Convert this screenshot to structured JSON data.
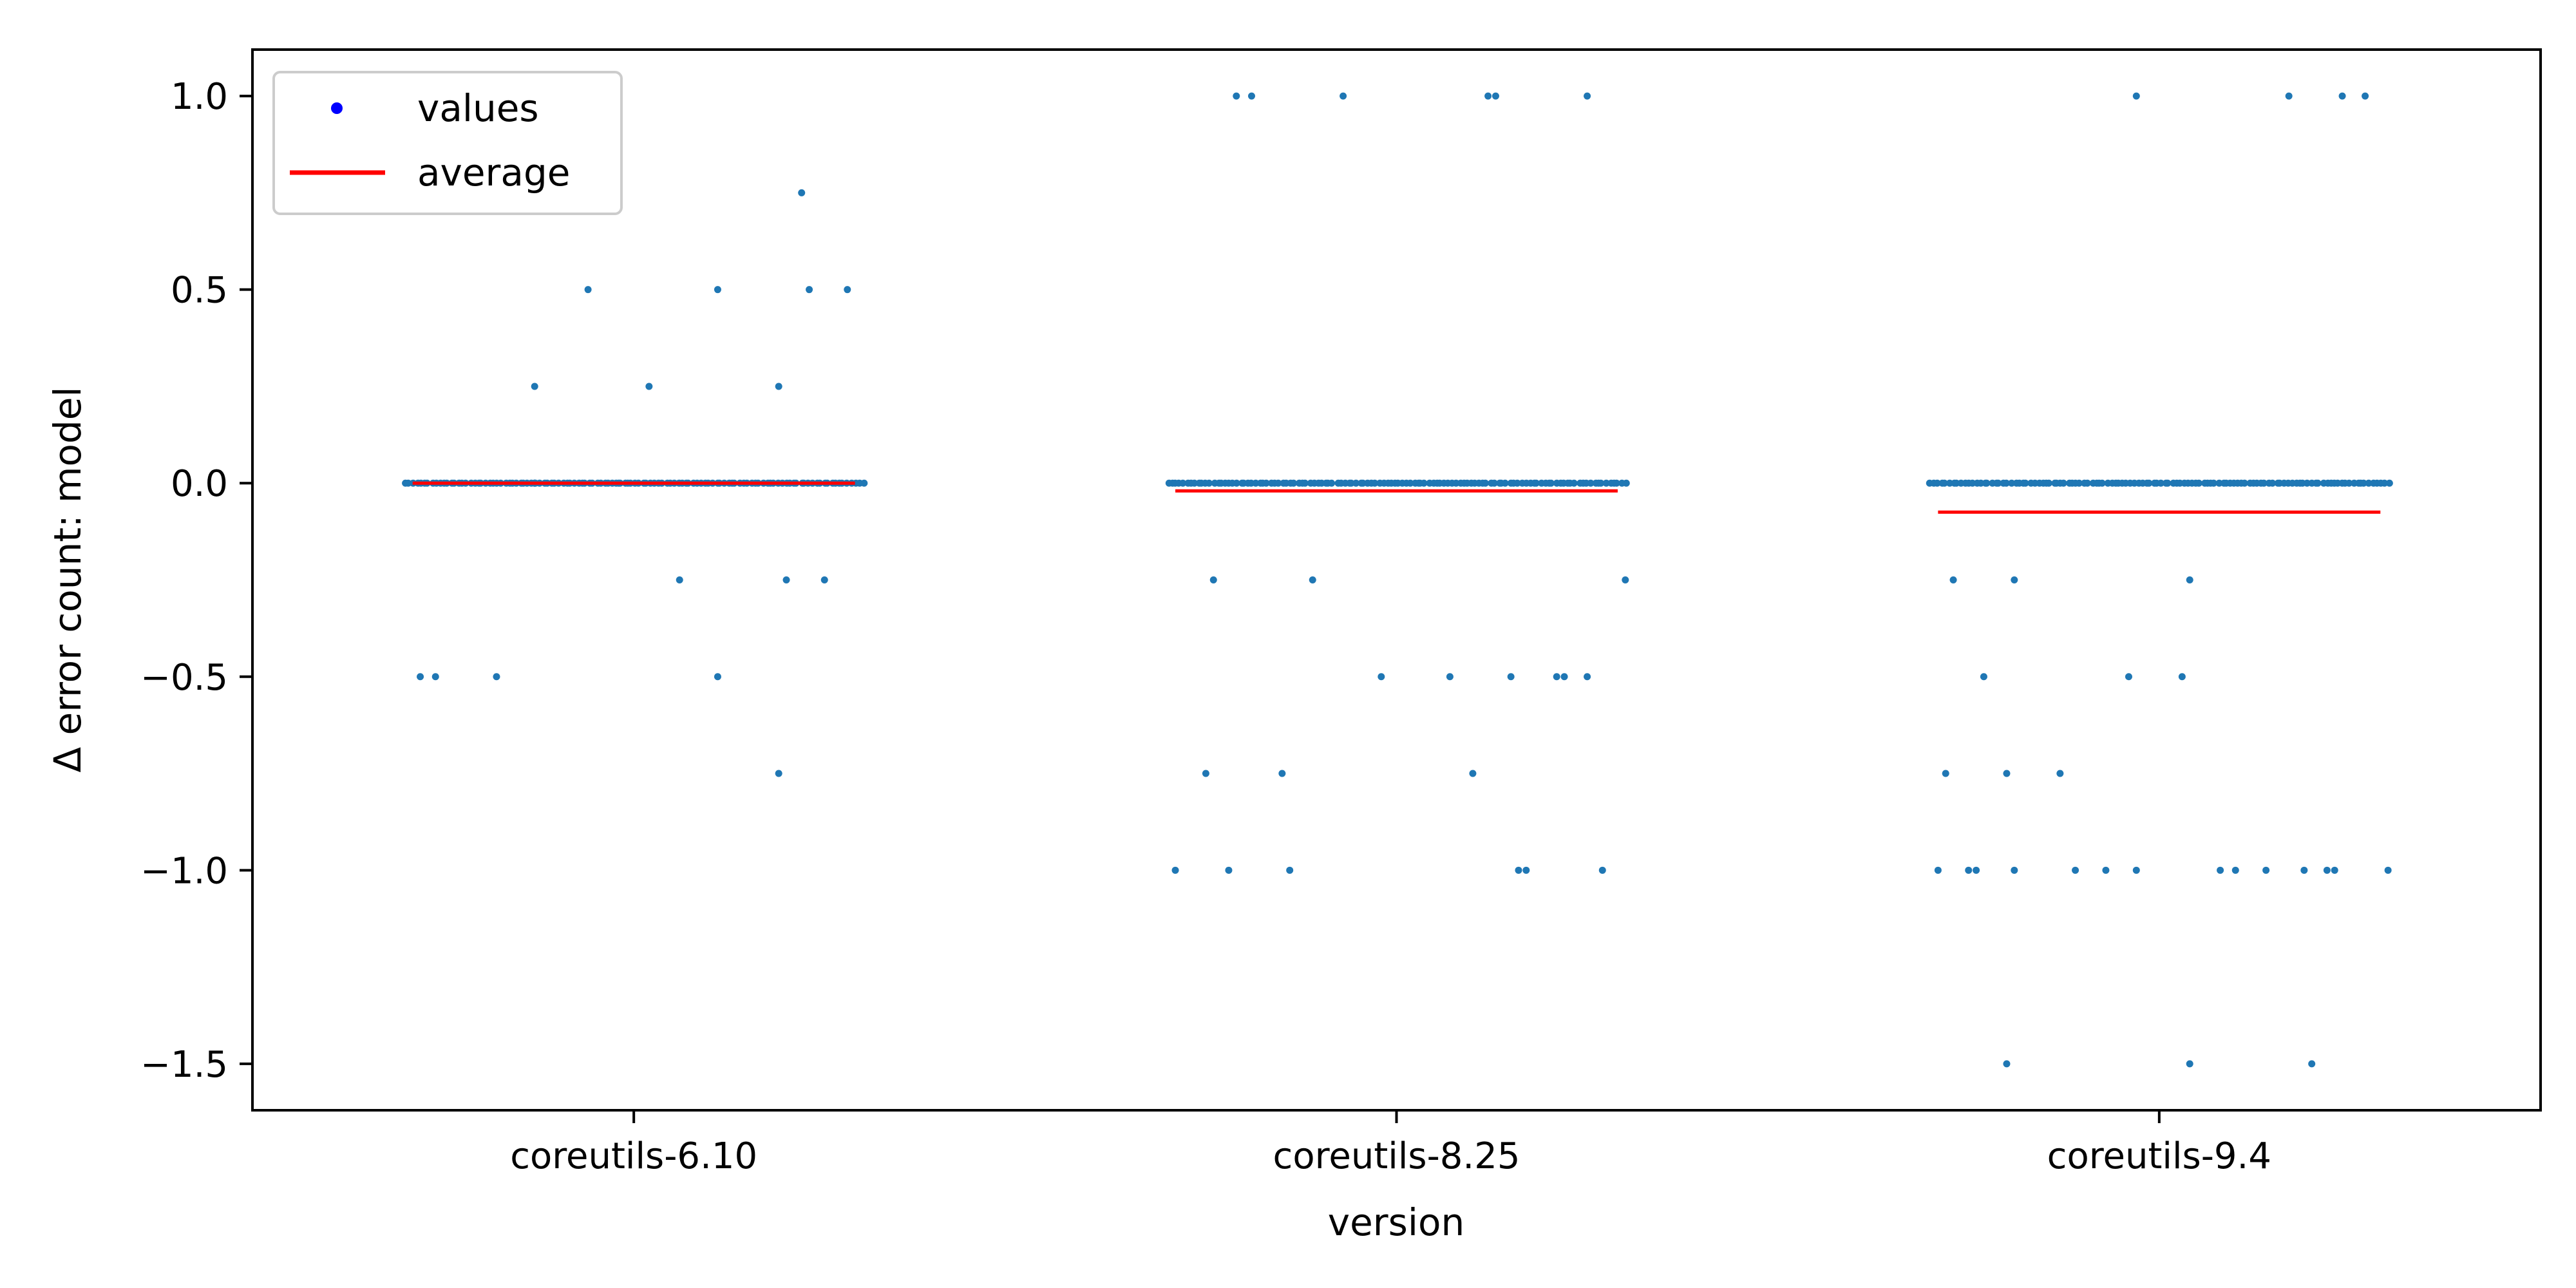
{
  "chart_data": {
    "type": "scatter",
    "xlabel": "version",
    "ylabel": "Δ error count: model",
    "ylim": [
      -1.62,
      1.12
    ],
    "categories": [
      "coreutils-6.10",
      "coreutils-8.25",
      "coreutils-9.4"
    ],
    "y_ticks": [
      1.0,
      0.5,
      0.0,
      -0.5,
      -1.0,
      -1.5
    ],
    "y_tick_labels": [
      "1.0",
      "0.5",
      "0.0",
      "−0.5",
      "−1.0",
      "−1.5"
    ],
    "legend": {
      "placement": "top-left",
      "entries": [
        {
          "label": "values",
          "color": "#0000ff",
          "marker": "dot"
        },
        {
          "label": "average",
          "color": "#ff0000",
          "marker": "line"
        }
      ]
    },
    "point_color": "#1f77b4",
    "average_color": "#ff0000",
    "jitter_range": [
      -0.3,
      0.3
    ],
    "groups": [
      {
        "category": "coreutils-6.10",
        "average": 0.0,
        "zero_count": 120,
        "outliers": [
          {
            "x": -0.13,
            "y": 0.25
          },
          {
            "x": -0.13,
            "y": 0.0
          },
          {
            "x": -0.13,
            "y": 0.0
          },
          {
            "x": -0.06,
            "y": 0.5
          },
          {
            "x": -0.02,
            "y": 0.0
          },
          {
            "x": 0.02,
            "y": 0.25
          },
          {
            "x": 0.11,
            "y": 0.5
          },
          {
            "x": 0.19,
            "y": 0.25
          },
          {
            "x": 0.22,
            "y": 0.75
          },
          {
            "x": 0.23,
            "y": 0.5
          },
          {
            "x": 0.28,
            "y": 0.5
          },
          {
            "x": 0.06,
            "y": -0.25
          },
          {
            "x": 0.2,
            "y": -0.25
          },
          {
            "x": 0.25,
            "y": -0.25
          },
          {
            "x": -0.28,
            "y": -0.5
          },
          {
            "x": -0.26,
            "y": -0.5
          },
          {
            "x": -0.18,
            "y": -0.5
          },
          {
            "x": 0.11,
            "y": -0.5
          },
          {
            "x": 0.19,
            "y": -0.75
          }
        ]
      },
      {
        "category": "coreutils-8.25",
        "average": -0.02,
        "zero_count": 120,
        "outliers": [
          {
            "x": -0.21,
            "y": 1.0
          },
          {
            "x": -0.19,
            "y": 1.0
          },
          {
            "x": -0.07,
            "y": 1.0
          },
          {
            "x": 0.12,
            "y": 1.0
          },
          {
            "x": 0.13,
            "y": 1.0
          },
          {
            "x": 0.25,
            "y": 1.0
          },
          {
            "x": -0.24,
            "y": -0.25
          },
          {
            "x": -0.11,
            "y": -0.25
          },
          {
            "x": 0.3,
            "y": -0.25
          },
          {
            "x": -0.02,
            "y": -0.5
          },
          {
            "x": 0.07,
            "y": -0.5
          },
          {
            "x": 0.15,
            "y": -0.5
          },
          {
            "x": 0.21,
            "y": -0.5
          },
          {
            "x": 0.22,
            "y": -0.5
          },
          {
            "x": 0.25,
            "y": -0.5
          },
          {
            "x": -0.25,
            "y": -0.75
          },
          {
            "x": -0.15,
            "y": -0.75
          },
          {
            "x": 0.1,
            "y": -0.75
          },
          {
            "x": -0.29,
            "y": -1.0
          },
          {
            "x": -0.22,
            "y": -1.0
          },
          {
            "x": -0.14,
            "y": -1.0
          },
          {
            "x": 0.16,
            "y": -1.0
          },
          {
            "x": 0.17,
            "y": -1.0
          },
          {
            "x": 0.27,
            "y": -1.0
          }
        ]
      },
      {
        "category": "coreutils-9.4",
        "average": -0.075,
        "zero_count": 120,
        "outliers": [
          {
            "x": -0.03,
            "y": 1.0
          },
          {
            "x": 0.17,
            "y": 1.0
          },
          {
            "x": 0.24,
            "y": 1.0
          },
          {
            "x": 0.27,
            "y": 1.0
          },
          {
            "x": -0.27,
            "y": -0.25
          },
          {
            "x": -0.19,
            "y": -0.25
          },
          {
            "x": 0.04,
            "y": -0.25
          },
          {
            "x": -0.23,
            "y": -0.5
          },
          {
            "x": -0.04,
            "y": -0.5
          },
          {
            "x": 0.03,
            "y": -0.5
          },
          {
            "x": -0.28,
            "y": -0.75
          },
          {
            "x": -0.2,
            "y": -0.75
          },
          {
            "x": -0.13,
            "y": -0.75
          },
          {
            "x": -0.29,
            "y": -1.0
          },
          {
            "x": -0.25,
            "y": -1.0
          },
          {
            "x": -0.24,
            "y": -1.0
          },
          {
            "x": -0.19,
            "y": -1.0
          },
          {
            "x": -0.11,
            "y": -1.0
          },
          {
            "x": -0.07,
            "y": -1.0
          },
          {
            "x": -0.03,
            "y": -1.0
          },
          {
            "x": 0.08,
            "y": -1.0
          },
          {
            "x": 0.1,
            "y": -1.0
          },
          {
            "x": 0.14,
            "y": -1.0
          },
          {
            "x": 0.19,
            "y": -1.0
          },
          {
            "x": 0.22,
            "y": -1.0
          },
          {
            "x": 0.23,
            "y": -1.0
          },
          {
            "x": 0.3,
            "y": -1.0
          },
          {
            "x": -0.2,
            "y": -1.5
          },
          {
            "x": 0.04,
            "y": -1.5
          },
          {
            "x": 0.2,
            "y": -1.5
          }
        ]
      }
    ]
  }
}
